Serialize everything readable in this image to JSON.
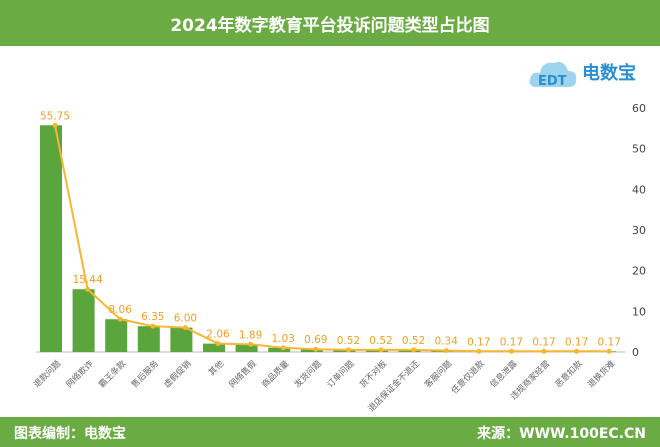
{
  "title": "2024年数字教育平台投诉问题类型占比图",
  "footer": {
    "left": "图表编制：电数宝",
    "right": "来源：WWW.100EC.CN"
  },
  "logo": {
    "text": "电数宝",
    "mark": "EDT"
  },
  "colors": {
    "bar": "#5aa53c",
    "line": "#f5b731",
    "label": "#f0a020",
    "header": "#6aab44"
  },
  "chart_data": {
    "type": "bar",
    "title": "2024年数字教育平台投诉问题类型占比图",
    "categories": [
      "退款问题",
      "网络欺诈",
      "霸王条款",
      "售后服务",
      "虚假促销",
      "其他",
      "网络售假",
      "商品质量",
      "发货问题",
      "订单问题",
      "货不对板",
      "退店保证金不退还",
      "客服问题",
      "任意仅退款",
      "信息泄露",
      "违规商家经营",
      "恶意扣款",
      "退换货难"
    ],
    "values": [
      55.75,
      15.44,
      8.06,
      6.35,
      6.0,
      2.06,
      1.89,
      1.03,
      0.69,
      0.52,
      0.52,
      0.52,
      0.34,
      0.17,
      0.17,
      0.17,
      0.17,
      0.17
    ],
    "overlay": "line",
    "ylim": [
      0,
      60
    ],
    "yticks": [
      0,
      10,
      20,
      30,
      40,
      50,
      60
    ],
    "yaxis_position": "right",
    "grid": false
  }
}
